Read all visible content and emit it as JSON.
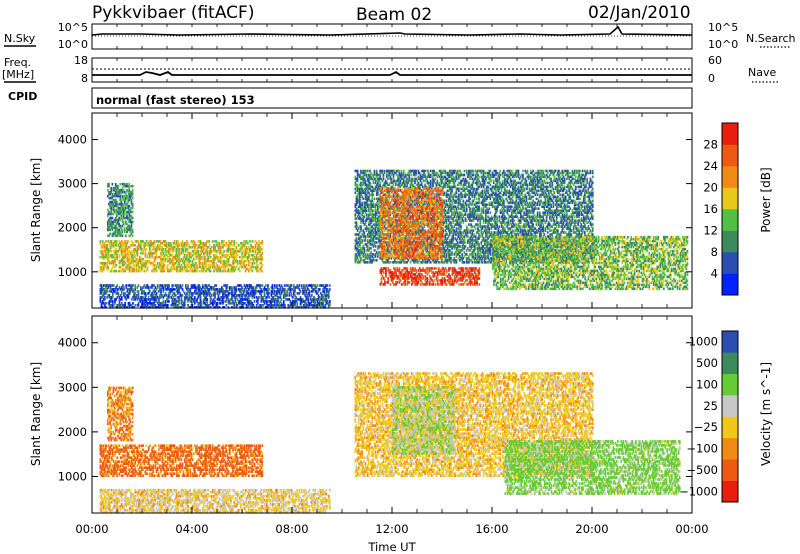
{
  "header": {
    "title": "Pykkvibaer (fitACF)",
    "beam": "Beam 02",
    "date": "02/Jan/2010"
  },
  "noise_panel": {
    "left_label": "N.Sky",
    "right_label": "N.Search",
    "left_ticks": [
      "10^5",
      "10^0"
    ],
    "right_ticks": [
      "10^5",
      "10^0"
    ]
  },
  "freq_panel": {
    "left_label_1": "Freq.",
    "left_label_2": "[MHz]",
    "right_label": "Nave",
    "left_ticks": [
      "18",
      "8"
    ],
    "right_ticks": [
      "60",
      "0"
    ]
  },
  "cpid": {
    "label": "CPID",
    "value": "normal (fast stereo) 153"
  },
  "time_axis": {
    "ticks": [
      "00:00",
      "04:00",
      "08:00",
      "12:00",
      "16:00",
      "20:00",
      "00:00"
    ],
    "label": "Time UT"
  },
  "colors": {
    "power": [
      "#0022ff",
      "#2a4fb0",
      "#3d8a5a",
      "#52c043",
      "#e8c81a",
      "#f08a16",
      "#ee5a14",
      "#e81f0e"
    ],
    "velocity": [
      "#e81f0e",
      "#ee5a14",
      "#f08a16",
      "#f0c81a",
      "#c8c8c8",
      "#66cc33",
      "#3d8a5a",
      "#2a4fb0"
    ]
  },
  "chart_data": [
    {
      "type": "heatmap",
      "title": "Power",
      "ylabel": "Slant Range [km]",
      "xlabel": "Time UT",
      "xlim": [
        0,
        24
      ],
      "ylim": [
        180,
        4600
      ],
      "yticks": [
        "1000",
        "2000",
        "3000",
        "4000"
      ],
      "colorbar": {
        "label": "Power [dB]",
        "ticks": [
          "4",
          "8",
          "12",
          "16",
          "20",
          "24",
          "28"
        ],
        "range": [
          0,
          32
        ]
      },
      "regions": [
        {
          "t_start": 0.3,
          "t_end": 6.8,
          "range_min": 1000,
          "range_max": 1700,
          "value": 18
        },
        {
          "t_start": 0.6,
          "t_end": 1.6,
          "range_min": 1800,
          "range_max": 3000,
          "value": 10
        },
        {
          "t_start": 0.3,
          "t_end": 9.5,
          "range_min": 180,
          "range_max": 700,
          "value": 6
        },
        {
          "t_start": 10.5,
          "t_end": 20.0,
          "range_min": 1200,
          "range_max": 3300,
          "value": 9
        },
        {
          "t_start": 11.5,
          "t_end": 14.0,
          "range_min": 1300,
          "range_max": 2900,
          "value": 24
        },
        {
          "t_start": 11.5,
          "t_end": 15.5,
          "range_min": 700,
          "range_max": 1100,
          "value": 28
        },
        {
          "t_start": 16.0,
          "t_end": 23.8,
          "range_min": 600,
          "range_max": 1800,
          "value": 14
        }
      ]
    },
    {
      "type": "heatmap",
      "title": "Velocity",
      "ylabel": "Slant Range [km]",
      "xlabel": "Time UT",
      "xlim": [
        0,
        24
      ],
      "ylim": [
        180,
        4600
      ],
      "yticks": [
        "1000",
        "2000",
        "3000",
        "4000"
      ],
      "colorbar": {
        "label": "Velocity [m s^-1]",
        "ticks": [
          "1000",
          "500",
          "100",
          "25",
          "−25",
          "−100",
          "−500",
          "−1000"
        ]
      },
      "regions": [
        {
          "t_start": 0.3,
          "t_end": 6.8,
          "range_min": 1000,
          "range_max": 1700,
          "value": -150
        },
        {
          "t_start": 0.6,
          "t_end": 1.6,
          "range_min": 1800,
          "range_max": 3000,
          "value": -80
        },
        {
          "t_start": 0.3,
          "t_end": 9.5,
          "range_min": 180,
          "range_max": 700,
          "value": 10
        },
        {
          "t_start": 10.5,
          "t_end": 20.0,
          "range_min": 1000,
          "range_max": 3300,
          "value": 0
        },
        {
          "t_start": 12.0,
          "t_end": 14.5,
          "range_min": 1500,
          "range_max": 3000,
          "value": 80
        },
        {
          "t_start": 16.5,
          "t_end": 23.5,
          "range_min": 600,
          "range_max": 1800,
          "value": 200
        }
      ]
    }
  ]
}
